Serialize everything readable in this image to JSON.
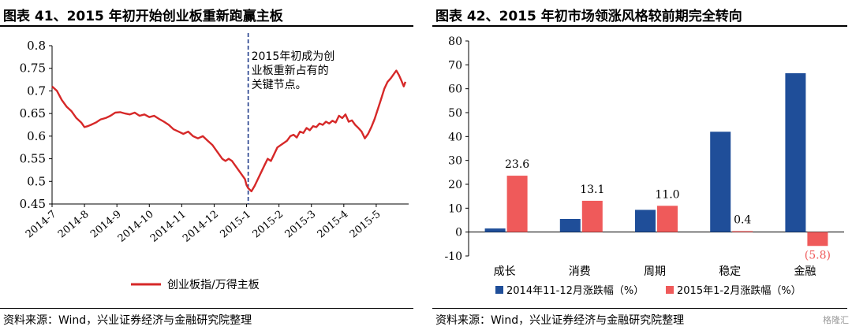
{
  "left": {
    "title": "图表 41、2015 年初开始创业板重新跑赢主板",
    "source": "资料来源：Wind，兴业证券经济与金融研究院整理",
    "annotation": [
      "2015年初成为创",
      "业板重新占有的",
      "关键节点。"
    ],
    "colors": {
      "line": "#d62828",
      "vline": "#1f3b8a"
    },
    "chart_data": {
      "type": "line",
      "title": "",
      "ylim": [
        0.45,
        0.8
      ],
      "yticks": [
        0.45,
        0.5,
        0.55,
        0.6,
        0.65,
        0.7,
        0.75,
        0.8
      ],
      "ytick_labels": [
        "0.45",
        "0.5",
        "0.55",
        "0.6",
        "0.65",
        "0.7",
        "0.75",
        "0.8"
      ],
      "xticks": [
        "2014-7",
        "2014-8",
        "2014-9",
        "2014-10",
        "2014-11",
        "2014-12",
        "2015-1",
        "2015-2",
        "2015-3",
        "2015-4",
        "2015-5"
      ],
      "series": [
        {
          "name": "创业板指/万得主板",
          "x": [
            0,
            0.15,
            0.3,
            0.45,
            0.6,
            0.75,
            0.9,
            1.0,
            1.1,
            1.2,
            1.35,
            1.5,
            1.65,
            1.8,
            1.95,
            2.1,
            2.25,
            2.4,
            2.55,
            2.7,
            2.85,
            3.0,
            3.15,
            3.3,
            3.45,
            3.6,
            3.75,
            3.9,
            4.05,
            4.2,
            4.35,
            4.5,
            4.65,
            4.8,
            4.95,
            5.05,
            5.15,
            5.25,
            5.35,
            5.45,
            5.55,
            5.65,
            5.75,
            5.85,
            5.95,
            6.0,
            6.05,
            6.15,
            6.25,
            6.35,
            6.45,
            6.55,
            6.65,
            6.75,
            6.85,
            6.95,
            7.05,
            7.15,
            7.25,
            7.35,
            7.45,
            7.55,
            7.65,
            7.75,
            7.85,
            7.95,
            8.05,
            8.15,
            8.25,
            8.35,
            8.45,
            8.55,
            8.65,
            8.75,
            8.85,
            8.95,
            9.05,
            9.15,
            9.25,
            9.35,
            9.45,
            9.55,
            9.65,
            9.75,
            9.85,
            9.95,
            10.05,
            10.15,
            10.25,
            10.35,
            10.45,
            10.55,
            10.62,
            10.7,
            10.78,
            10.85,
            10.9
          ],
          "y": [
            0.71,
            0.7,
            0.68,
            0.665,
            0.655,
            0.64,
            0.63,
            0.62,
            0.622,
            0.625,
            0.63,
            0.637,
            0.64,
            0.645,
            0.652,
            0.653,
            0.65,
            0.648,
            0.652,
            0.645,
            0.648,
            0.642,
            0.645,
            0.638,
            0.632,
            0.625,
            0.615,
            0.61,
            0.605,
            0.61,
            0.6,
            0.595,
            0.6,
            0.59,
            0.58,
            0.57,
            0.56,
            0.55,
            0.545,
            0.55,
            0.545,
            0.535,
            0.525,
            0.515,
            0.505,
            0.492,
            0.485,
            0.478,
            0.49,
            0.505,
            0.52,
            0.535,
            0.55,
            0.545,
            0.56,
            0.575,
            0.58,
            0.585,
            0.59,
            0.6,
            0.603,
            0.597,
            0.61,
            0.607,
            0.618,
            0.613,
            0.622,
            0.62,
            0.628,
            0.625,
            0.632,
            0.628,
            0.634,
            0.63,
            0.645,
            0.64,
            0.648,
            0.632,
            0.635,
            0.625,
            0.618,
            0.61,
            0.595,
            0.605,
            0.62,
            0.638,
            0.66,
            0.682,
            0.705,
            0.72,
            0.728,
            0.738,
            0.745,
            0.735,
            0.722,
            0.71,
            0.72
          ]
        }
      ]
    }
  },
  "right": {
    "title": "图表 42、2015 年初市场领涨风格较前期完全转向",
    "source": "资料来源：Wind，兴业证券经济与金融研究院整理",
    "colors": {
      "series1": "#1f4e99",
      "series2": "#ef5a5a"
    },
    "watermark": "格隆汇",
    "chart_data": {
      "type": "bar",
      "title": "",
      "categories": [
        "成长",
        "消费",
        "周期",
        "稳定",
        "金融"
      ],
      "ylim": [
        -10,
        80
      ],
      "yticks": [
        -10,
        0,
        10,
        20,
        30,
        40,
        50,
        60,
        70,
        80
      ],
      "series": [
        {
          "name": "2014年11-12月涨跌幅（%）",
          "values": [
            1.5,
            5.5,
            9.3,
            42.0,
            66.5
          ]
        },
        {
          "name": "2015年1-2月涨跌幅（%）",
          "values": [
            23.6,
            13.1,
            11.0,
            0.4,
            -5.8
          ]
        }
      ],
      "data_labels": [
        "23.6",
        "13.1",
        "11.0",
        "0.4",
        "(5.8)"
      ]
    }
  }
}
